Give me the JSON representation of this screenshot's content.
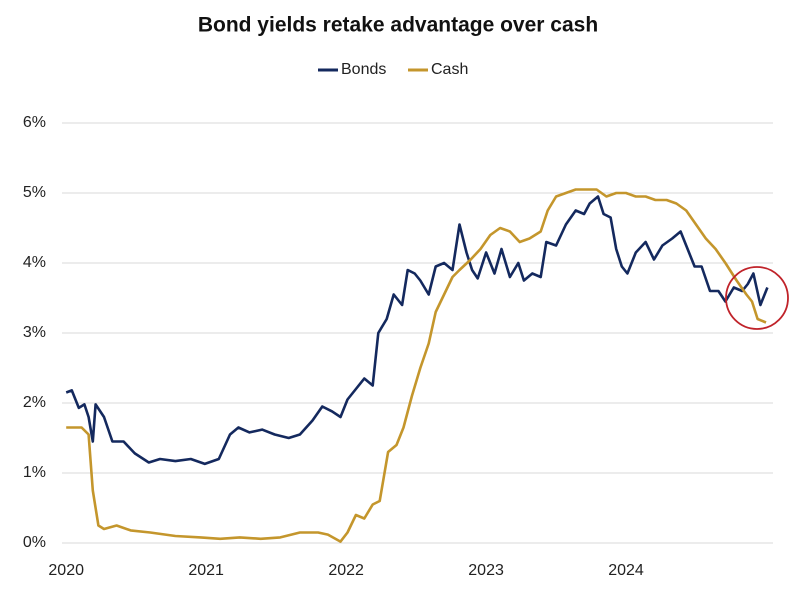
{
  "chart_data": {
    "type": "line",
    "title": "Bond yields retake advantage over cash",
    "xlim": [
      2019.97,
      2025.05
    ],
    "xticks": [
      2020,
      2021,
      2022,
      2023,
      2024
    ],
    "ylim": [
      0,
      6
    ],
    "yticks": [
      {
        "value": 0,
        "label": "0%"
      },
      {
        "value": 1,
        "label": "1%"
      },
      {
        "value": 2,
        "label": "2%"
      },
      {
        "value": 3,
        "label": "3%"
      },
      {
        "value": 4,
        "label": "4%"
      },
      {
        "value": 5,
        "label": "5%"
      },
      {
        "value": 6,
        "label": "6%"
      }
    ],
    "grid": true,
    "legend": "top",
    "series": [
      {
        "name": "Bonds",
        "color": "#14295e",
        "x": [
          2020.0,
          2020.04,
          2020.09,
          2020.13,
          2020.16,
          2020.19,
          2020.21,
          2020.27,
          2020.33,
          2020.41,
          2020.49,
          2020.59,
          2020.67,
          2020.78,
          2020.89,
          2020.99,
          2021.09,
          2021.17,
          2021.23,
          2021.31,
          2021.4,
          2021.49,
          2021.59,
          2021.67,
          2021.76,
          2021.83,
          2021.9,
          2021.96,
          2022.01,
          2022.07,
          2022.13,
          2022.19,
          2022.23,
          2022.29,
          2022.34,
          2022.4,
          2022.44,
          2022.49,
          2022.53,
          2022.59,
          2022.64,
          2022.7,
          2022.76,
          2022.81,
          2022.86,
          2022.9,
          2022.94,
          2023.0,
          2023.06,
          2023.11,
          2023.17,
          2023.23,
          2023.27,
          2023.33,
          2023.39,
          2023.43,
          2023.5,
          2023.57,
          2023.64,
          2023.7,
          2023.74,
          2023.8,
          2023.84,
          2023.89,
          2023.93,
          2023.97,
          2024.01,
          2024.07,
          2024.14,
          2024.2,
          2024.26,
          2024.33,
          2024.39,
          2024.43,
          2024.49,
          2024.54,
          2024.6,
          2024.66,
          2024.71,
          2024.77,
          2024.83,
          2024.87,
          2024.91,
          2024.96,
          2025.01
        ],
        "values": [
          2.15,
          2.18,
          1.93,
          1.98,
          1.8,
          1.45,
          1.98,
          1.8,
          1.45,
          1.45,
          1.28,
          1.15,
          1.2,
          1.17,
          1.2,
          1.13,
          1.2,
          1.55,
          1.65,
          1.58,
          1.62,
          1.55,
          1.5,
          1.55,
          1.75,
          1.95,
          1.88,
          1.8,
          2.05,
          2.2,
          2.35,
          2.25,
          3.0,
          3.2,
          3.55,
          3.4,
          3.9,
          3.85,
          3.75,
          3.55,
          3.95,
          4.0,
          3.9,
          4.55,
          4.15,
          3.9,
          3.78,
          4.15,
          3.85,
          4.2,
          3.8,
          4.0,
          3.75,
          3.85,
          3.8,
          4.3,
          4.25,
          4.55,
          4.75,
          4.7,
          4.85,
          4.95,
          4.7,
          4.65,
          4.2,
          3.95,
          3.85,
          4.15,
          4.3,
          4.05,
          4.25,
          4.35,
          4.45,
          4.25,
          3.95,
          3.95,
          3.6,
          3.6,
          3.45,
          3.65,
          3.6,
          3.7,
          3.85,
          3.4,
          3.65
        ]
      },
      {
        "name": "Cash",
        "color": "#c4962c",
        "x": [
          2020.0,
          2020.11,
          2020.16,
          2020.19,
          2020.23,
          2020.27,
          2020.36,
          2020.46,
          2020.6,
          2020.78,
          2020.96,
          2021.1,
          2021.24,
          2021.39,
          2021.53,
          2021.67,
          2021.8,
          2021.87,
          2021.96,
          2022.01,
          2022.07,
          2022.13,
          2022.19,
          2022.24,
          2022.3,
          2022.36,
          2022.41,
          2022.47,
          2022.53,
          2022.59,
          2022.64,
          2022.7,
          2022.76,
          2022.81,
          2022.89,
          2022.96,
          2023.03,
          2023.1,
          2023.17,
          2023.24,
          2023.31,
          2023.39,
          2023.44,
          2023.5,
          2023.57,
          2023.64,
          2023.71,
          2023.79,
          2023.86,
          2023.93,
          2024.0,
          2024.07,
          2024.14,
          2024.21,
          2024.29,
          2024.36,
          2024.43,
          2024.5,
          2024.57,
          2024.64,
          2024.71,
          2024.79,
          2024.86,
          2024.9,
          2024.94,
          2025.0
        ],
        "values": [
          1.65,
          1.65,
          1.55,
          0.75,
          0.25,
          0.2,
          0.25,
          0.18,
          0.15,
          0.1,
          0.08,
          0.06,
          0.08,
          0.06,
          0.08,
          0.15,
          0.15,
          0.12,
          0.02,
          0.15,
          0.4,
          0.35,
          0.55,
          0.6,
          1.3,
          1.4,
          1.65,
          2.1,
          2.5,
          2.85,
          3.3,
          3.55,
          3.8,
          3.9,
          4.05,
          4.2,
          4.4,
          4.5,
          4.45,
          4.3,
          4.35,
          4.45,
          4.75,
          4.95,
          5.0,
          5.05,
          5.05,
          5.05,
          4.95,
          5.0,
          5.0,
          4.95,
          4.95,
          4.9,
          4.9,
          4.85,
          4.75,
          4.55,
          4.35,
          4.2,
          4.0,
          3.75,
          3.55,
          3.45,
          3.2,
          3.15
        ]
      }
    ]
  }
}
